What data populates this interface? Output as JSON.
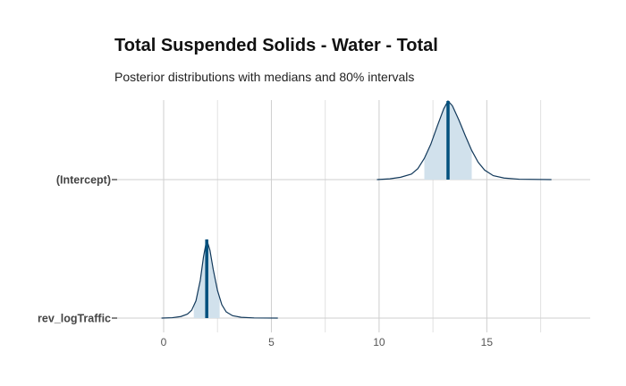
{
  "chart_data": {
    "type": "area",
    "title": "Total Suspended Solids - Water - Total",
    "subtitle": "Posterior distributions with medians and 80% intervals",
    "xlabel": "",
    "ylabel": "",
    "xlim": [
      -2.2,
      19.8
    ],
    "x_ticks": [
      0,
      5,
      10,
      15
    ],
    "x_tick_labels": [
      "0",
      "5",
      "10",
      "15"
    ],
    "grid": true,
    "legend": "none",
    "colors": {
      "outline": "#12395b",
      "interval_fill": "#d1e1ec",
      "median_line": "#03507d",
      "gridline": "#cfcfcf"
    },
    "series": [
      {
        "name": "(Intercept)",
        "median": 13.2,
        "interval_80": [
          12.1,
          14.3
        ],
        "range": [
          9.9,
          18.0
        ],
        "density_x": [
          9.9,
          10.5,
          11.0,
          11.5,
          11.8,
          12.1,
          12.4,
          12.7,
          13.0,
          13.2,
          13.4,
          13.7,
          14.0,
          14.3,
          14.6,
          14.9,
          15.3,
          15.8,
          16.5,
          18.0
        ],
        "density_y": [
          0.0,
          0.01,
          0.03,
          0.07,
          0.14,
          0.27,
          0.45,
          0.68,
          0.9,
          1.0,
          0.94,
          0.76,
          0.56,
          0.37,
          0.22,
          0.12,
          0.05,
          0.02,
          0.005,
          0.0
        ]
      },
      {
        "name": "rev_logTraffic",
        "median": 2.0,
        "interval_80": [
          1.4,
          2.6
        ],
        "range": [
          -0.1,
          5.3
        ],
        "density_x": [
          -0.1,
          0.4,
          0.8,
          1.1,
          1.3,
          1.5,
          1.7,
          1.85,
          2.0,
          2.15,
          2.3,
          2.5,
          2.7,
          2.9,
          3.2,
          3.6,
          4.2,
          5.3
        ],
        "density_y": [
          0.0,
          0.005,
          0.02,
          0.05,
          0.1,
          0.22,
          0.48,
          0.78,
          1.0,
          0.86,
          0.62,
          0.35,
          0.17,
          0.08,
          0.03,
          0.01,
          0.002,
          0.0
        ]
      }
    ]
  }
}
